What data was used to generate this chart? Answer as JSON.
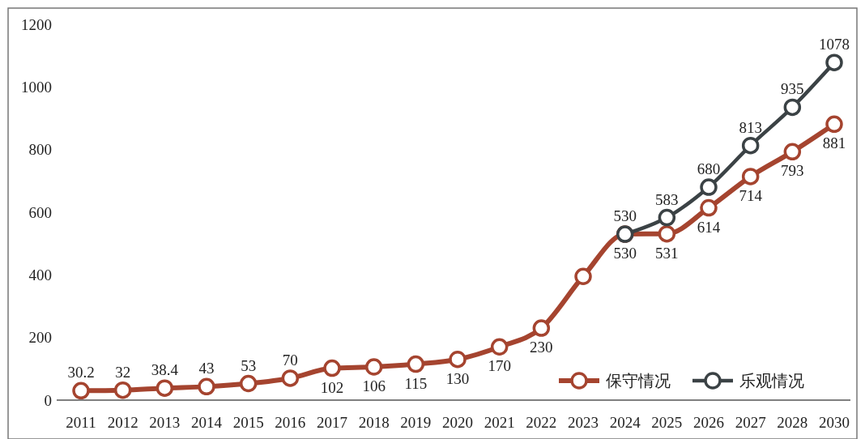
{
  "chart_data": {
    "type": "line",
    "categories": [
      "2011",
      "2012",
      "2013",
      "2014",
      "2015",
      "2016",
      "2017",
      "2018",
      "2019",
      "2020",
      "2021",
      "2022",
      "2023",
      "2024",
      "2025",
      "2026",
      "2027",
      "2028",
      "2030"
    ],
    "series": [
      {
        "name": "保守情况",
        "color": "#a5442f",
        "values": [
          30.2,
          32,
          38.4,
          43,
          53,
          70,
          102,
          106,
          115,
          130,
          170,
          230,
          395,
          530,
          531,
          614,
          714,
          793,
          881
        ],
        "value_labels": [
          "30.2",
          "32",
          "38.4",
          "43",
          "53",
          "70",
          "102",
          "106",
          "115",
          "130",
          "170",
          "230",
          null,
          "530",
          "531",
          "614",
          "714",
          "793",
          "881"
        ]
      },
      {
        "name": "乐观情况",
        "color": "#3b4245",
        "values": [
          null,
          null,
          null,
          null,
          null,
          null,
          null,
          null,
          null,
          null,
          null,
          null,
          null,
          530,
          583,
          680,
          813,
          935,
          1078
        ],
        "value_labels": [
          null,
          null,
          null,
          null,
          null,
          null,
          null,
          null,
          null,
          null,
          null,
          null,
          null,
          "530",
          "583",
          "680",
          "813",
          "935",
          "1078"
        ]
      }
    ],
    "ylim": [
      0,
      1200
    ],
    "yticks": [
      0,
      200,
      400,
      600,
      800,
      1000,
      1200
    ],
    "grid": false,
    "legend": "bottom right",
    "marker": "circle",
    "line_style": "solid"
  }
}
